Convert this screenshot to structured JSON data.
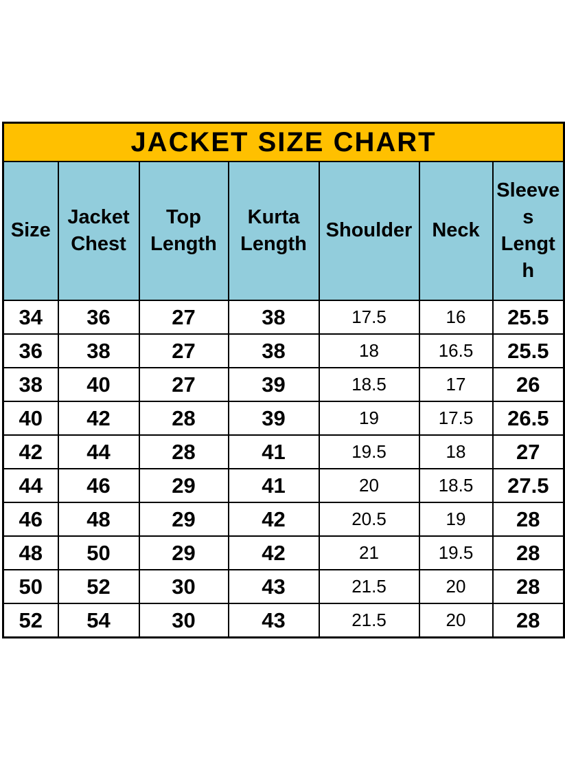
{
  "title": "JACKET SIZE CHART",
  "table": {
    "columns": [
      "Size",
      "Jacket Chest",
      "Top Length",
      "Kurta Length",
      "Shoulder",
      "Neck",
      "Sleeves Length"
    ],
    "rows": [
      [
        "34",
        "36",
        "27",
        "38",
        "17.5",
        "16",
        "25.5"
      ],
      [
        "36",
        "38",
        "27",
        "38",
        "18",
        "16.5",
        "25.5"
      ],
      [
        "38",
        "40",
        "27",
        "39",
        "18.5",
        "17",
        "26"
      ],
      [
        "40",
        "42",
        "28",
        "39",
        "19",
        "17.5",
        "26.5"
      ],
      [
        "42",
        "44",
        "28",
        "41",
        "19.5",
        "18",
        "27"
      ],
      [
        "44",
        "46",
        "29",
        "41",
        "20",
        "18.5",
        "27.5"
      ],
      [
        "46",
        "48",
        "29",
        "42",
        "20.5",
        "19",
        "28"
      ],
      [
        "48",
        "50",
        "29",
        "42",
        "21",
        "19.5",
        "28"
      ],
      [
        "50",
        "52",
        "30",
        "43",
        "21.5",
        "20",
        "28"
      ],
      [
        "52",
        "54",
        "30",
        "43",
        "21.5",
        "20",
        "28"
      ]
    ]
  },
  "colors": {
    "title_background": "#FFC000",
    "header_background": "#92CDDC",
    "border": "#000000",
    "row_background": "#FFFFFF",
    "text": "#000000"
  },
  "chart_data": {
    "type": "table",
    "title": "JACKET SIZE CHART",
    "columns": [
      "Size",
      "Jacket Chest",
      "Top Length",
      "Kurta Length",
      "Shoulder",
      "Neck",
      "Sleeves Length"
    ],
    "rows": [
      [
        34,
        36,
        27,
        38,
        17.5,
        16,
        25.5
      ],
      [
        36,
        38,
        27,
        38,
        18,
        16.5,
        25.5
      ],
      [
        38,
        40,
        27,
        39,
        18.5,
        17,
        26
      ],
      [
        40,
        42,
        28,
        39,
        19,
        17.5,
        26.5
      ],
      [
        42,
        44,
        28,
        41,
        19.5,
        18,
        27
      ],
      [
        44,
        46,
        29,
        41,
        20,
        18.5,
        27.5
      ],
      [
        46,
        48,
        29,
        42,
        20.5,
        19,
        28
      ],
      [
        48,
        50,
        29,
        42,
        21,
        19.5,
        28
      ],
      [
        50,
        52,
        30,
        43,
        21.5,
        20,
        28
      ],
      [
        52,
        54,
        30,
        43,
        21.5,
        20,
        28
      ]
    ],
    "layout_hints": {
      "title_row_background": "#FFC000",
      "header_row_background": "#92CDDC",
      "grid": true,
      "values_alignment": "center"
    }
  }
}
